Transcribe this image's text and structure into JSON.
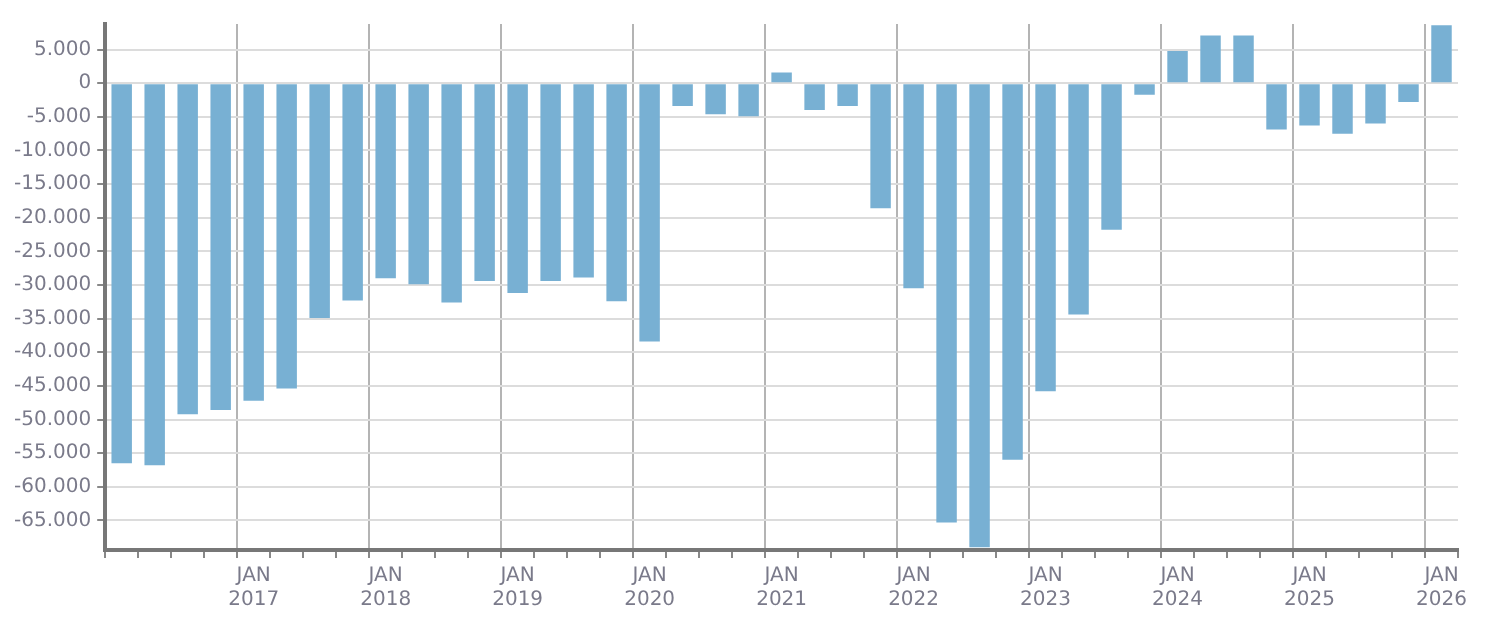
{
  "chart_data": {
    "type": "bar",
    "color": "#78b0d3",
    "categories": [
      null,
      null,
      null,
      null,
      "JAN 2017",
      null,
      null,
      null,
      "JAN 2018",
      null,
      null,
      null,
      "JAN 2019",
      null,
      null,
      null,
      "JAN 2020",
      null,
      null,
      null,
      "JAN 2021",
      null,
      null,
      null,
      "JAN 2022",
      null,
      null,
      null,
      "JAN 2023",
      null,
      null,
      null,
      "JAN 2024",
      null,
      null,
      null,
      "JAN 2025",
      null,
      null,
      null,
      "JAN 2026"
    ],
    "values": [
      -56500,
      -56800,
      -49200,
      -48600,
      -47200,
      -45400,
      -34900,
      -32300,
      -29000,
      -29900,
      -32600,
      -29400,
      -31200,
      -29400,
      -28900,
      -32400,
      -38400,
      -3400,
      -4600,
      -4900,
      1600,
      -4000,
      -3400,
      -18600,
      -30500,
      -65300,
      -69000,
      -56000,
      -45800,
      -34400,
      -21800,
      -1700,
      4800,
      7100,
      7100,
      -6900,
      -6300,
      -7500,
      -6000,
      -2800,
      8600
    ],
    "ylim": [
      -69400,
      8800
    ],
    "yticks": [
      {
        "value": 5000,
        "label": "5.000"
      },
      0,
      {
        "value": -5000,
        "label": "-5.000"
      },
      {
        "value": -10000,
        "label": "-10.000"
      },
      {
        "value": -15000,
        "label": "-15.000"
      },
      {
        "value": -20000,
        "label": "-20.000"
      },
      {
        "value": -25000,
        "label": "-25.000"
      },
      {
        "value": -30000,
        "label": "-30.000"
      },
      {
        "value": -35000,
        "label": "-35.000"
      },
      {
        "value": -40000,
        "label": "-40.000"
      },
      {
        "value": -45000,
        "label": "-45.000"
      },
      {
        "value": -50000,
        "label": "-50.000"
      },
      {
        "value": -55000,
        "label": "-55.000"
      },
      {
        "value": -60000,
        "label": "-60.000"
      },
      {
        "value": -65000,
        "label": "-65.000"
      }
    ],
    "grid": true,
    "legend": false
  }
}
